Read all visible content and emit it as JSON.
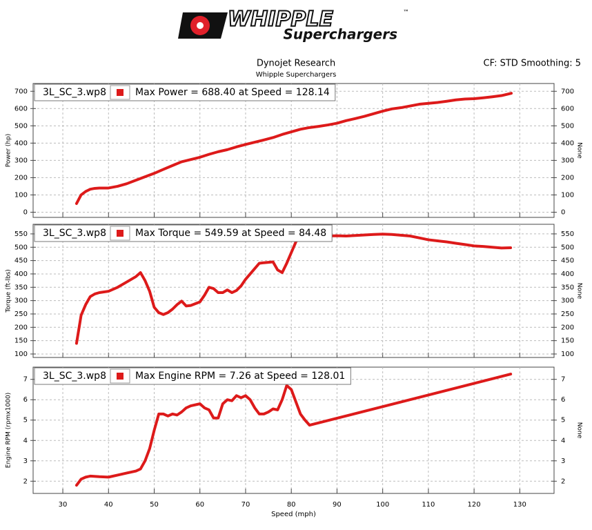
{
  "header": {
    "brand": "WHIPPLE",
    "trademark": "™",
    "tagline": "Superchargers",
    "title": "Dynojet Research",
    "subtitle": "Whipple Superchargers",
    "settings": "CF: STD Smoothing: 5"
  },
  "chart_data": [
    {
      "type": "line",
      "ylabel": "Power (hp)",
      "y2label": "None",
      "annotation": "Max Power = 688.40 at Speed = 128.14",
      "x": [
        33,
        34,
        35,
        36,
        37,
        38,
        40,
        42,
        44,
        46,
        48,
        50,
        52,
        54,
        56,
        58,
        60,
        62,
        64,
        66,
        68,
        70,
        72,
        74,
        76,
        78,
        80,
        82,
        84,
        86,
        88,
        90,
        92,
        94,
        96,
        98,
        100,
        102,
        104,
        106,
        108,
        110,
        112,
        114,
        116,
        118,
        120,
        122,
        124,
        126,
        128.14
      ],
      "series": [
        {
          "name": "3L_SC_3.wp8",
          "color": "#dd1a1a",
          "values": [
            50,
            100,
            120,
            133,
            138,
            140,
            140,
            150,
            165,
            185,
            205,
            225,
            248,
            270,
            292,
            305,
            318,
            335,
            350,
            362,
            378,
            392,
            405,
            418,
            432,
            450,
            465,
            480,
            490,
            497,
            505,
            515,
            530,
            542,
            555,
            570,
            585,
            598,
            605,
            615,
            625,
            630,
            635,
            642,
            650,
            655,
            657,
            662,
            668,
            675,
            688.4
          ]
        }
      ],
      "xlim": [
        23.5,
        137.5
      ],
      "xticks": [
        30,
        40,
        50,
        60,
        70,
        80,
        90,
        100,
        110,
        120,
        130
      ],
      "ylim": [
        -30,
        745
      ],
      "yticks": [
        0,
        100,
        200,
        300,
        400,
        500,
        600,
        700
      ],
      "grid": true
    },
    {
      "type": "line",
      "ylabel": "Torque (ft-lbs)",
      "y2label": "None",
      "annotation": "Max Torque = 549.59 at Speed = 84.48",
      "x": [
        33,
        34,
        35,
        36,
        37,
        38,
        40,
        42,
        44,
        46,
        47,
        48,
        49,
        50,
        51,
        52,
        53,
        54,
        55,
        56,
        57,
        58,
        60,
        61,
        62,
        63,
        64,
        65,
        66,
        67,
        68,
        69,
        70,
        71,
        72,
        73,
        74,
        76,
        77,
        78,
        79,
        80,
        81,
        82,
        84.48,
        86,
        88,
        90,
        92,
        94,
        96,
        98,
        100,
        102,
        104,
        106,
        108,
        110,
        112,
        114,
        116,
        118,
        120,
        122,
        124,
        126,
        128
      ],
      "series": [
        {
          "name": "3L_SC_3.wp8",
          "color": "#dd1a1a",
          "values": [
            140,
            245,
            285,
            315,
            325,
            330,
            335,
            350,
            370,
            390,
            405,
            375,
            335,
            275,
            255,
            248,
            255,
            268,
            285,
            298,
            280,
            282,
            295,
            320,
            350,
            345,
            330,
            330,
            340,
            330,
            338,
            355,
            380,
            400,
            420,
            440,
            442,
            445,
            415,
            405,
            440,
            480,
            520,
            545,
            549.59,
            545,
            542,
            543,
            542,
            544,
            546,
            548,
            549,
            548,
            545,
            542,
            535,
            528,
            524,
            520,
            515,
            510,
            505,
            503,
            500,
            497,
            498
          ]
        }
      ],
      "xlim": [
        23.5,
        137.5
      ],
      "xticks": [
        30,
        40,
        50,
        60,
        70,
        80,
        90,
        100,
        110,
        120,
        130
      ],
      "ylim": [
        87,
        586
      ],
      "yticks": [
        100,
        150,
        200,
        250,
        300,
        350,
        400,
        450,
        500,
        550
      ],
      "grid": true
    },
    {
      "type": "line",
      "ylabel": "Engine RPM (rpmx1000)",
      "y2label": "None",
      "xlabel": "Speed (mph)",
      "annotation": "Max Engine RPM = 7.26 at Speed = 128.01",
      "x": [
        33,
        34,
        35,
        36,
        38,
        40,
        42,
        44,
        46,
        47,
        48,
        49,
        50,
        51,
        52,
        53,
        54,
        55,
        56,
        57,
        58,
        60,
        61,
        62,
        63,
        64,
        65,
        66,
        67,
        68,
        69,
        70,
        71,
        72,
        73,
        74,
        75,
        76,
        77,
        78,
        79,
        80,
        81,
        82,
        83,
        84,
        128.01
      ],
      "series": [
        {
          "name": "3L_SC_3.wp8",
          "color": "#dd1a1a",
          "values": [
            1.8,
            2.1,
            2.2,
            2.25,
            2.22,
            2.2,
            2.3,
            2.4,
            2.5,
            2.6,
            3.0,
            3.6,
            4.5,
            5.3,
            5.3,
            5.2,
            5.3,
            5.25,
            5.4,
            5.6,
            5.7,
            5.8,
            5.6,
            5.5,
            5.1,
            5.1,
            5.8,
            6.0,
            5.95,
            6.2,
            6.1,
            6.2,
            6.0,
            5.6,
            5.3,
            5.3,
            5.4,
            5.55,
            5.5,
            6.0,
            6.7,
            6.5,
            5.9,
            5.3,
            5.0,
            4.75,
            7.26
          ]
        }
      ],
      "xlim": [
        23.5,
        137.5
      ],
      "xticks": [
        30,
        40,
        50,
        60,
        70,
        80,
        90,
        100,
        110,
        120,
        130
      ],
      "ylim": [
        1.4,
        7.6
      ],
      "yticks": [
        2,
        3,
        4,
        5,
        6,
        7
      ],
      "grid": true
    }
  ]
}
